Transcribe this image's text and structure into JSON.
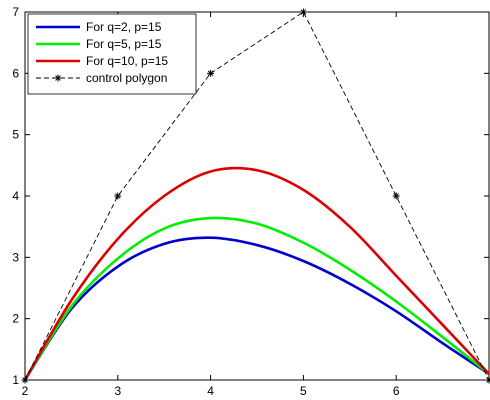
{
  "chart_data": {
    "type": "line",
    "title": "",
    "xlabel": "",
    "ylabel": "",
    "xlim": [
      2,
      7
    ],
    "ylim": [
      1,
      7
    ],
    "x_ticks": [
      2,
      3,
      4,
      5,
      6
    ],
    "y_ticks": [
      1,
      2,
      3,
      4,
      5,
      6,
      7
    ],
    "grid": false,
    "legend_position": "top-left",
    "series": [
      {
        "name": "For q=2, p=15",
        "color": "#0000cc",
        "x": [
          2.0,
          2.5,
          3.0,
          3.5,
          4.0,
          4.5,
          5.0,
          5.5,
          6.0,
          6.5,
          7.0
        ],
        "y": [
          1.0,
          2.16,
          2.85,
          3.22,
          3.32,
          3.2,
          2.94,
          2.57,
          2.12,
          1.6,
          1.1
        ]
      },
      {
        "name": "For q=5, p=15",
        "color": "#00ee00",
        "x": [
          2.0,
          2.5,
          3.0,
          3.5,
          4.0,
          4.5,
          5.0,
          5.5,
          6.0,
          6.5,
          7.0
        ],
        "y": [
          1.0,
          2.2,
          2.98,
          3.47,
          3.64,
          3.55,
          3.24,
          2.8,
          2.28,
          1.7,
          1.1
        ]
      },
      {
        "name": "For q=10, p=15",
        "color": "#dd0000",
        "x": [
          2.0,
          2.5,
          3.0,
          3.5,
          4.0,
          4.5,
          5.0,
          5.5,
          6.0,
          6.5,
          7.0
        ],
        "y": [
          1.0,
          2.3,
          3.3,
          4.0,
          4.4,
          4.42,
          4.1,
          3.5,
          2.7,
          1.9,
          1.1
        ]
      },
      {
        "name": "control polygon",
        "color": "#000000",
        "style": "dashed",
        "marker": "*",
        "x": [
          2,
          3,
          4,
          5,
          6,
          7
        ],
        "y": [
          1,
          4,
          6,
          7,
          4,
          1
        ]
      }
    ]
  }
}
